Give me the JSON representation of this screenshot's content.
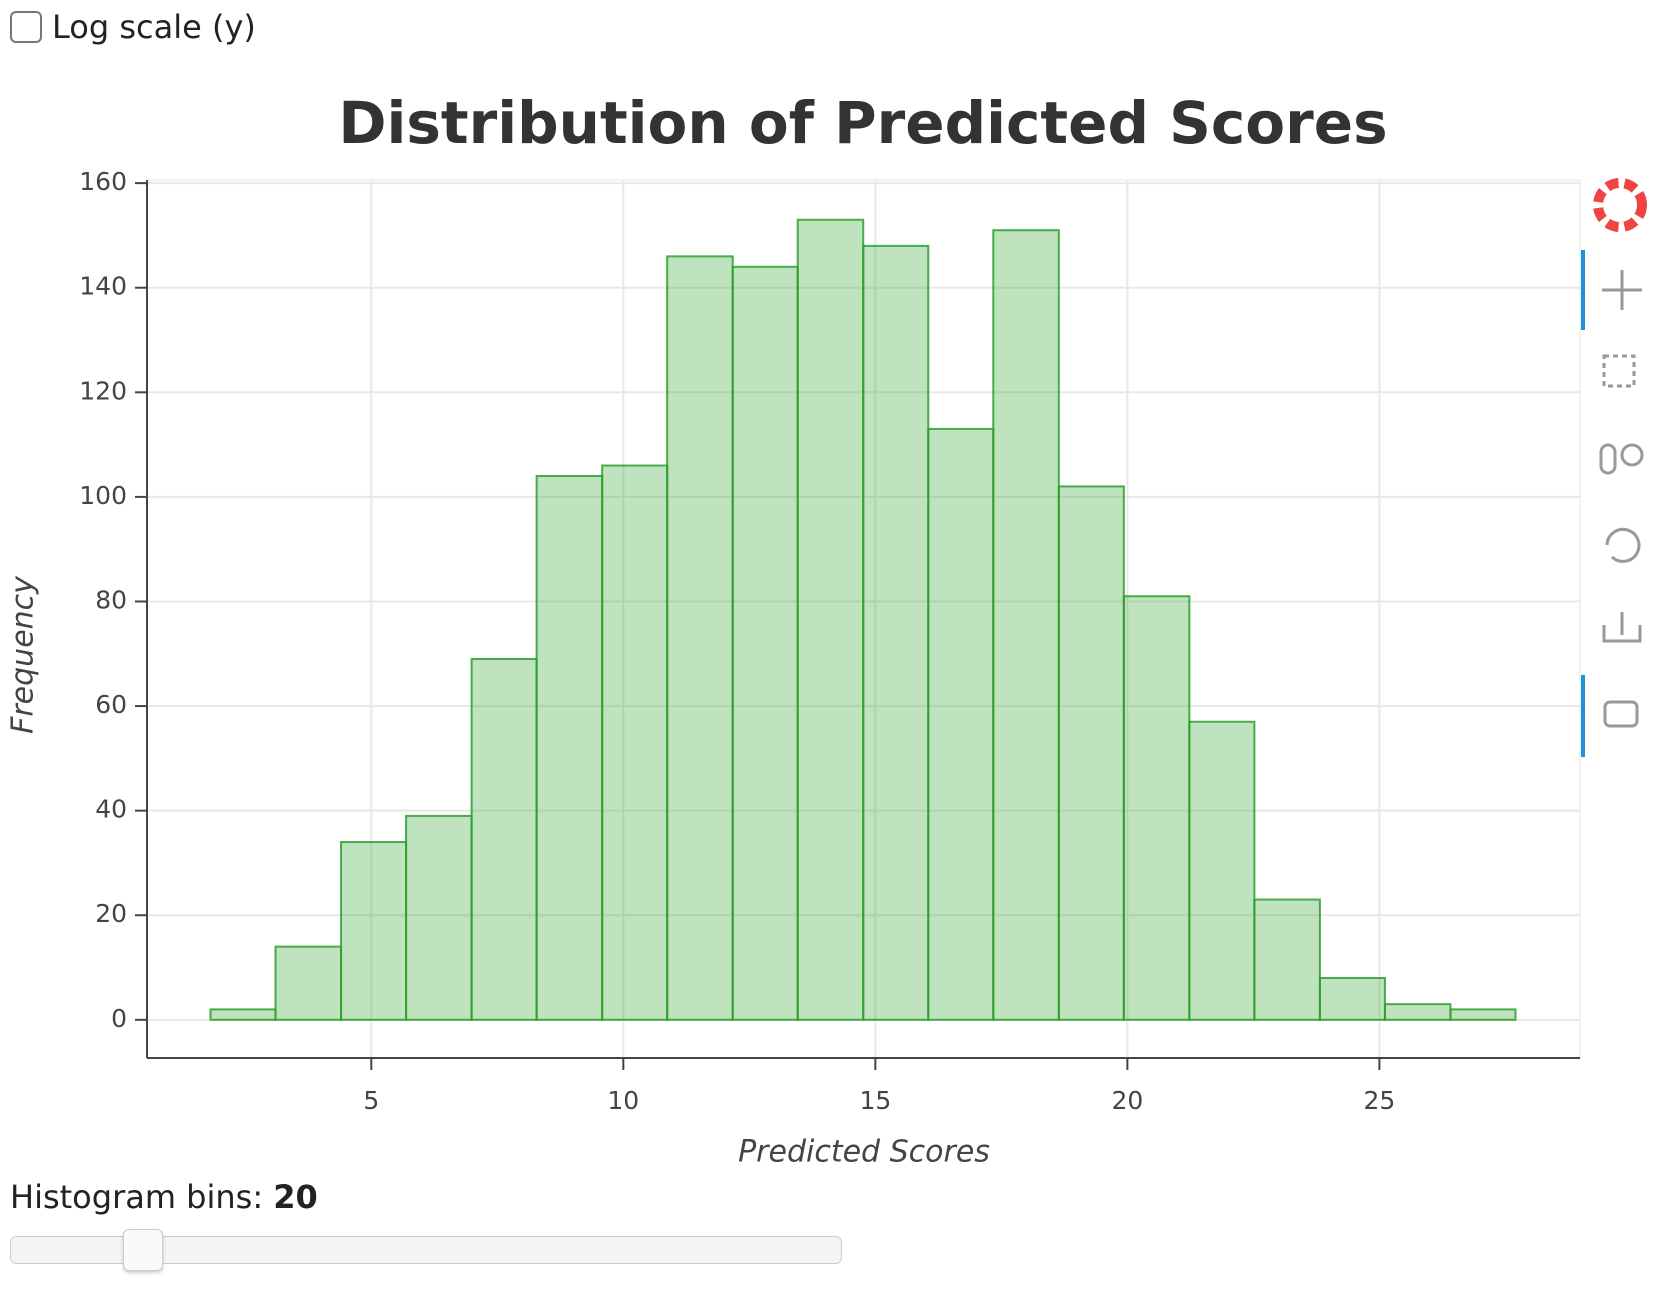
{
  "controls": {
    "log_scale_label": "Log scale (y)",
    "bins_label": "Histogram bins:",
    "bins_value": 20
  },
  "chart_data": {
    "type": "histogram",
    "title": "Distribution of Predicted Scores",
    "x_label": "Predicted Scores",
    "y_label": "Frequency",
    "bins": [
      1.81,
      3.1,
      4.4,
      5.69,
      6.99,
      8.28,
      9.58,
      10.87,
      12.17,
      13.46,
      14.76,
      16.05,
      17.34,
      18.64,
      19.93,
      21.23,
      22.52,
      23.82,
      25.11,
      26.41,
      27.7
    ],
    "values": [
      2,
      14,
      34,
      39,
      69,
      104,
      106,
      146,
      144,
      153,
      148,
      113,
      151,
      102,
      81,
      57,
      23,
      8,
      3,
      2
    ],
    "color": "#2ca02c",
    "xlim": [
      0.55,
      28.98
    ],
    "ylim": [
      -7.3,
      160.6
    ],
    "xticks": [
      5,
      10,
      15,
      20,
      25
    ],
    "yticks": [
      0,
      20,
      40,
      60,
      80,
      100,
      120,
      140,
      160
    ],
    "log_scale": false,
    "grid": true
  }
}
